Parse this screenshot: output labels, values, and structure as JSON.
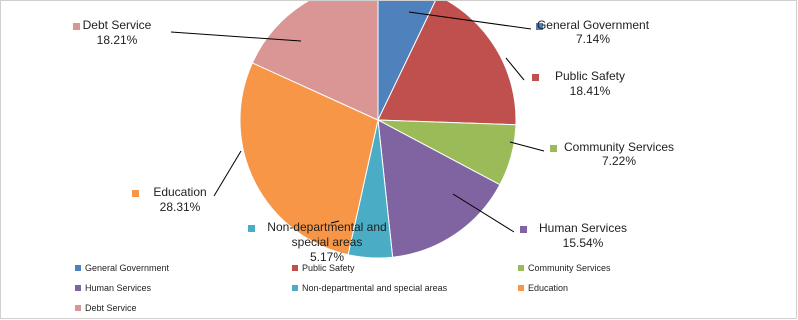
{
  "chart_data": {
    "type": "pie",
    "title": "",
    "slices": [
      {
        "name": "General Government",
        "value": 7.14,
        "label": "7.14%",
        "color": "#4f81bd"
      },
      {
        "name": "Public Safety",
        "value": 18.41,
        "label": "18.41%",
        "color": "#c0504d"
      },
      {
        "name": "Community Services",
        "value": 7.22,
        "label": "7.22%",
        "color": "#9bbb59"
      },
      {
        "name": "Human Services",
        "value": 15.54,
        "label": "15.54%",
        "color": "#8064a2"
      },
      {
        "name": "Non-departmental and special areas",
        "value": 5.17,
        "label": "5.17%",
        "color": "#4bacc6"
      },
      {
        "name": "Education",
        "value": 28.31,
        "label": "28.31%",
        "color": "#f79646"
      },
      {
        "name": "Debt Service",
        "value": 18.21,
        "label": "18.21%",
        "color": "#d99694"
      }
    ],
    "legend_position": "bottom"
  }
}
